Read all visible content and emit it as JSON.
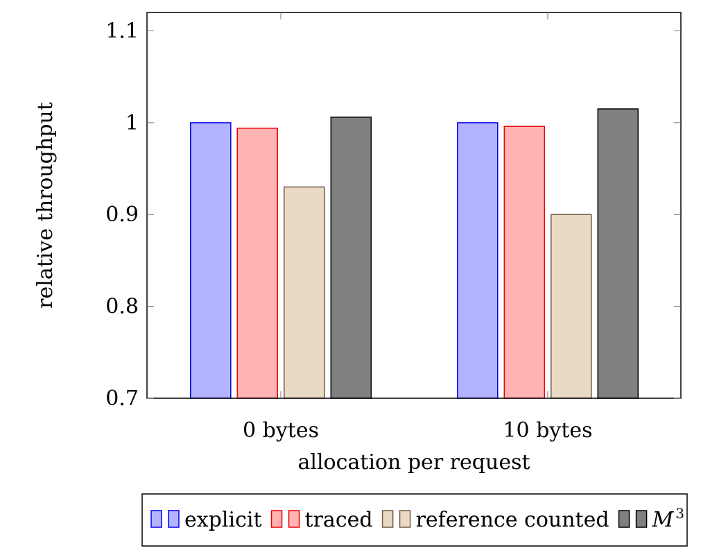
{
  "chart_data": {
    "type": "bar",
    "title": "",
    "xlabel": "allocation per request",
    "ylabel": "relative throughput",
    "categories": [
      "0 bytes",
      "10 bytes"
    ],
    "ylim": [
      0.7,
      1.12
    ],
    "yticks": [
      0.7,
      0.8,
      0.9,
      1,
      1.1
    ],
    "ytick_labels": [
      "0.7",
      "0.8",
      "0.9",
      "1",
      "1.1"
    ],
    "grid": false,
    "legend_position": "bottom",
    "series": [
      {
        "name": "explicit",
        "legend_label": "explicit",
        "values": [
          1.0,
          1.0
        ],
        "fill": "#b3b3ff",
        "stroke": "#0000ee"
      },
      {
        "name": "traced",
        "legend_label": "traced",
        "values": [
          0.994,
          0.996
        ],
        "fill": "#ffb3b3",
        "stroke": "#ee0000"
      },
      {
        "name": "reference counted",
        "legend_label": "reference counted",
        "values": [
          0.93,
          0.9
        ],
        "fill": "#ead9c4",
        "stroke": "#6e5a44"
      },
      {
        "name": "M³",
        "legend_label": "M",
        "legend_sup": "3",
        "values": [
          1.006,
          1.015
        ],
        "fill": "#808080",
        "stroke": "#000000"
      }
    ]
  }
}
